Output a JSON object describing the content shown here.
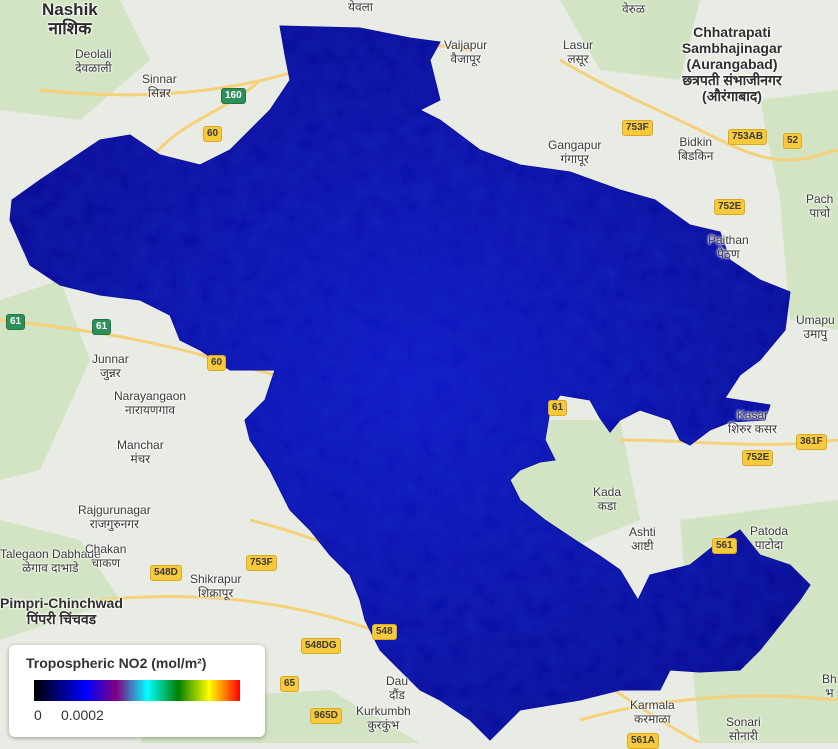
{
  "places": [
    {
      "id": "nashik",
      "en": "Nashik",
      "mr": "नाशिक",
      "cls": "big"
    },
    {
      "id": "deolali",
      "en": "Deolali",
      "mr": "देवळाली"
    },
    {
      "id": "sinnar",
      "en": "Sinnar",
      "mr": "सिन्नर"
    },
    {
      "id": "yevla",
      "en": "",
      "mr": "येवला"
    },
    {
      "id": "vaijapur",
      "en": "Vaijapur",
      "mr": "वैजापूर"
    },
    {
      "id": "lasur",
      "en": "Lasur",
      "mr": "लसूर"
    },
    {
      "id": "verul",
      "en": "",
      "mr": "वेरुळ"
    },
    {
      "id": "sambhaji",
      "en": "Chhatrapati Sambhajinagar (Aurangabad)",
      "mr": "छत्रपती संभाजीनगर (औरंगाबाद)",
      "cls": "med"
    },
    {
      "id": "gangapur",
      "en": "Gangapur",
      "mr": "गंगापूर"
    },
    {
      "id": "bidkin",
      "en": "Bidkin",
      "mr": "बिडकिन"
    },
    {
      "id": "pachod",
      "en": "Pach",
      "mr": "पाचो"
    },
    {
      "id": "paithan",
      "en": "Paithan",
      "mr": "पैठण"
    },
    {
      "id": "umapur",
      "en": "Umapu",
      "mr": "उमापु"
    },
    {
      "id": "shirurkasar",
      "en": "Kasar",
      "mr": "शिरुर कसर"
    },
    {
      "id": "junnar",
      "en": "Junnar",
      "mr": "जुन्नर"
    },
    {
      "id": "narayangaon",
      "en": "Narayangaon",
      "mr": "नारायणगाव"
    },
    {
      "id": "manchar",
      "en": "Manchar",
      "mr": "मंचर"
    },
    {
      "id": "rajgurunagar",
      "en": "Rajgurunagar",
      "mr": "राजगुरुनगर"
    },
    {
      "id": "talegaon",
      "en": "Talegaon Dabhade",
      "mr": "ळेगाव दाभाडे"
    },
    {
      "id": "chakan",
      "en": "Chakan",
      "mr": "चाकण"
    },
    {
      "id": "shikrapur",
      "en": "Shikrapur",
      "mr": "शिक्रापूर"
    },
    {
      "id": "pimpri",
      "en": "Pimpri-Chinchwad",
      "mr": "पिंपरी चिंचवड",
      "cls": "med"
    },
    {
      "id": "kada",
      "en": "Kada",
      "mr": "कडा"
    },
    {
      "id": "ashti",
      "en": "Ashti",
      "mr": "आष्टी"
    },
    {
      "id": "patoda",
      "en": "Patoda",
      "mr": "पाटोदा"
    },
    {
      "id": "daund",
      "en": "Dau",
      "mr": "दौंड"
    },
    {
      "id": "kurkumbh",
      "en": "Kurkumbh",
      "mr": "कुरकुंभ"
    },
    {
      "id": "karmala",
      "en": "Karmala",
      "mr": "करमाळा"
    },
    {
      "id": "sonari",
      "en": "Sonari",
      "mr": "सोनारी"
    },
    {
      "id": "bhu",
      "en": "Bh",
      "mr": "भ"
    }
  ],
  "roads": [
    "160",
    "60",
    "753F",
    "753AB",
    "52",
    "752E",
    "61",
    "61",
    "60",
    "61",
    "361F",
    "752E",
    "561",
    "753F",
    "548D",
    "548DG",
    "548",
    "65",
    "965D",
    "561A"
  ],
  "legend": {
    "title": "Tropospheric NO2 (mol/m²)",
    "min": "0",
    "max": "0.0002"
  },
  "colors": {
    "no2_fill": "#0a0ea8",
    "land": "#e8ece4",
    "green": "#cfe5c0",
    "road": "#f6d27a"
  }
}
